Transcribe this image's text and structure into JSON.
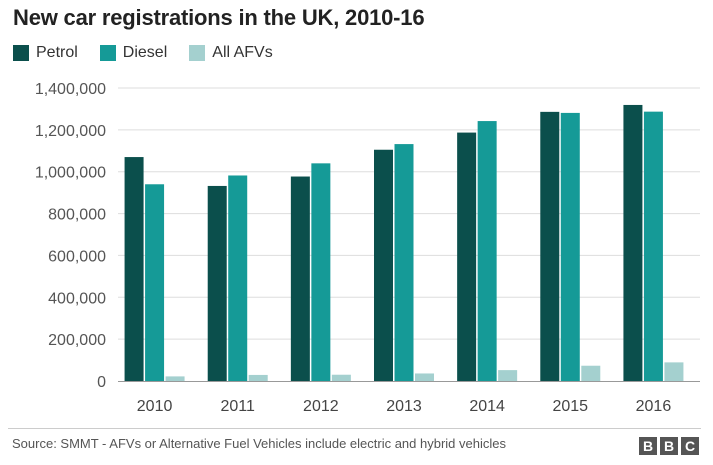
{
  "chart_data": {
    "type": "bar",
    "title": "New car registrations in the UK, 2010-16",
    "categories": [
      "2010",
      "2011",
      "2012",
      "2013",
      "2014",
      "2015",
      "2016"
    ],
    "series": [
      {
        "name": "Petrol",
        "color": "#0b4f4c",
        "values": [
          1070000,
          932000,
          977000,
          1105000,
          1187000,
          1286000,
          1319000
        ]
      },
      {
        "name": "Diesel",
        "color": "#159a97",
        "values": [
          940000,
          982000,
          1040000,
          1132000,
          1242000,
          1281000,
          1287000
        ]
      },
      {
        "name": "All AFVs",
        "color": "#a4d0cf",
        "values": [
          22000,
          29000,
          30000,
          36000,
          52000,
          73000,
          89000
        ]
      }
    ],
    "ylim": [
      0,
      1400000
    ],
    "yticks": [
      0,
      200000,
      400000,
      600000,
      800000,
      1000000,
      1200000,
      1400000
    ],
    "ytick_labels": [
      "0",
      "200,000",
      "400,000",
      "600,000",
      "800,000",
      "1,000,000",
      "1,200,000",
      "1,400,000"
    ],
    "xlabel": "",
    "ylabel": "",
    "grid": true,
    "legend_position": "top-left"
  },
  "footer": {
    "source": "Source: SMMT - AFVs or Alternative Fuel Vehicles include electric and hybrid vehicles",
    "logo_letters": [
      "B",
      "B",
      "C"
    ]
  }
}
